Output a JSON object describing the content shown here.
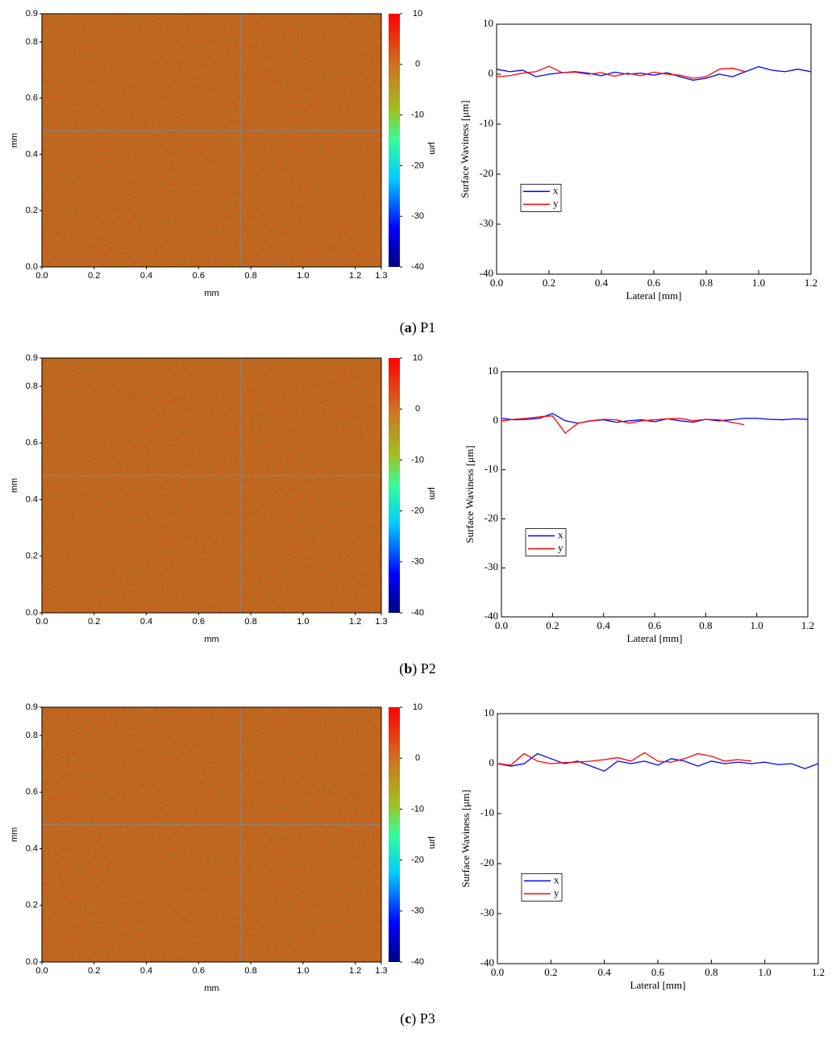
{
  "panels": [
    {
      "label": "a",
      "name": "P1"
    },
    {
      "label": "b",
      "name": "P2"
    },
    {
      "label": "c",
      "name": "P3"
    }
  ],
  "chart_data": [
    {
      "type": "heatmap",
      "xlabel": "mm",
      "ylabel": "mm",
      "xlim": [
        0,
        1.3
      ],
      "ylim": [
        0,
        0.9
      ],
      "xticks": [
        {
          "value": 0,
          "label": "0.0"
        },
        0.2,
        0.4,
        0.6,
        0.8,
        {
          "value": 1,
          "label": "1.0"
        },
        1.2,
        1.3
      ],
      "yticks": [
        {
          "value": 0,
          "label": "0.0"
        },
        0.2,
        0.4,
        0.6,
        0.8,
        0.9
      ],
      "crosshair": [
        0.76,
        0.485
      ],
      "colorbar": {
        "lim": [
          -40,
          10
        ],
        "ticks": [
          10,
          0,
          -10,
          -20,
          -30,
          -40
        ],
        "label": "μm"
      }
    },
    {
      "type": "line",
      "xlabel": "Lateral [mm]",
      "ylabel": "Surface Waviness [μm]",
      "xlim": [
        0,
        1.2
      ],
      "ylim": [
        -40,
        10
      ],
      "xticks": [
        {
          "value": 0,
          "label": "0.0"
        },
        0.2,
        0.4,
        0.6,
        0.8,
        {
          "value": 1,
          "label": "1.0"
        },
        1.2
      ],
      "yticks": [
        10,
        0,
        -10,
        -20,
        -30,
        -40
      ],
      "legend": "center left",
      "x": [
        0,
        0.05,
        0.1,
        0.15,
        0.2,
        0.25,
        0.3,
        0.35,
        0.4,
        0.45,
        0.5,
        0.55,
        0.6,
        0.65,
        0.7,
        0.75,
        0.8,
        0.85,
        0.9,
        0.95,
        1,
        1.05,
        1.1,
        1.15,
        1.2
      ],
      "series": [
        {
          "name": "x",
          "color": "#0000ff",
          "values": [
            1,
            0.5,
            0.8,
            -0.5,
            0,
            0.3,
            0.5,
            0.2,
            -0.3,
            0.4,
            0,
            0.2,
            -0.2,
            0.3,
            -0.5,
            -1.2,
            -0.8,
            0,
            -0.5,
            0.5,
            1.5,
            0.8,
            0.5,
            1,
            0.5
          ]
        },
        {
          "name": "y",
          "color": "#ff0000",
          "values": [
            -0.5,
            -0.3,
            0.2,
            0.5,
            1.6,
            0.3,
            0.4,
            0,
            0.3,
            -0.4,
            0.2,
            -0.3,
            0.4,
            0,
            -0.2,
            -0.8,
            -0.5,
            1,
            1.2,
            0.5,
            null,
            null,
            null,
            null,
            null
          ]
        }
      ]
    },
    {
      "type": "heatmap",
      "xlabel": "mm",
      "ylabel": "mm",
      "xlim": [
        0,
        1.3
      ],
      "ylim": [
        0,
        0.9
      ],
      "xticks": [
        {
          "value": 0,
          "label": "0.0"
        },
        0.2,
        0.4,
        0.6,
        0.8,
        {
          "value": 1,
          "label": "1.0"
        },
        1.2,
        1.3
      ],
      "yticks": [
        {
          "value": 0,
          "label": "0.0"
        },
        0.2,
        0.4,
        0.6,
        0.8,
        0.9
      ],
      "crosshair": [
        0.76,
        0.485
      ],
      "colorbar": {
        "lim": [
          -40,
          10
        ],
        "ticks": [
          10,
          0,
          -10,
          -20,
          -30,
          -40
        ],
        "label": "μm"
      }
    },
    {
      "type": "line",
      "xlabel": "Lateral [mm]",
      "ylabel": "Surface Waviness [μm]",
      "xlim": [
        0,
        1.2
      ],
      "ylim": [
        -40,
        10
      ],
      "xticks": [
        {
          "value": 0,
          "label": "0.0"
        },
        0.2,
        0.4,
        0.6,
        0.8,
        {
          "value": 1,
          "label": "1.0"
        },
        1.2
      ],
      "yticks": [
        10,
        0,
        -10,
        -20,
        -30,
        -40
      ],
      "legend": "center left",
      "x": [
        0,
        0.05,
        0.1,
        0.15,
        0.2,
        0.25,
        0.3,
        0.35,
        0.4,
        0.45,
        0.5,
        0.55,
        0.6,
        0.65,
        0.7,
        0.75,
        0.8,
        0.85,
        0.9,
        0.95,
        1,
        1.05,
        1.1,
        1.15,
        1.2
      ],
      "series": [
        {
          "name": "x",
          "color": "#0000ff",
          "values": [
            0.5,
            0.2,
            0.3,
            0.5,
            1.5,
            0,
            -0.5,
            0,
            0.2,
            -0.3,
            0,
            0.2,
            -0.2,
            0.4,
            0,
            -0.3,
            0.3,
            0,
            0.2,
            0.5,
            0.5,
            0.3,
            0.2,
            0.4,
            0.3
          ]
        },
        {
          "name": "y",
          "color": "#ff0000",
          "values": [
            0,
            0.3,
            0.5,
            0.8,
            1,
            -2.5,
            -0.5,
            0,
            0.3,
            0.2,
            -0.5,
            0,
            0.2,
            0.4,
            0.5,
            0,
            0.3,
            0.2,
            -0.3,
            -0.8,
            null,
            null,
            null,
            null,
            null
          ]
        }
      ]
    },
    {
      "type": "heatmap",
      "xlabel": "mm",
      "ylabel": "mm",
      "xlim": [
        0,
        1.3
      ],
      "ylim": [
        0,
        0.9
      ],
      "xticks": [
        {
          "value": 0,
          "label": "0.0"
        },
        0.2,
        0.4,
        0.6,
        0.8,
        {
          "value": 1,
          "label": "1.0"
        },
        1.2,
        1.3
      ],
      "yticks": [
        {
          "value": 0,
          "label": "0.0"
        },
        0.2,
        0.4,
        0.6,
        0.8,
        0.9
      ],
      "crosshair": [
        0.76,
        0.485
      ],
      "colorbar": {
        "lim": [
          -40,
          10
        ],
        "ticks": [
          10,
          0,
          -10,
          -20,
          -30,
          -40
        ],
        "label": "μm"
      }
    },
    {
      "type": "line",
      "xlabel": "Lateral [mm]",
      "ylabel": "Surface Waviness [μm]",
      "xlim": [
        0,
        1.2
      ],
      "ylim": [
        -40,
        10
      ],
      "xticks": [
        {
          "value": 0,
          "label": "0.0"
        },
        0.2,
        0.4,
        0.6,
        0.8,
        {
          "value": 1,
          "label": "1.0"
        },
        1.2
      ],
      "yticks": [
        10,
        0,
        -10,
        -20,
        -30,
        -40
      ],
      "legend": "center left",
      "x": [
        0,
        0.05,
        0.1,
        0.15,
        0.2,
        0.25,
        0.3,
        0.35,
        0.4,
        0.45,
        0.5,
        0.55,
        0.6,
        0.65,
        0.7,
        0.75,
        0.8,
        0.85,
        0.9,
        0.95,
        1,
        1.05,
        1.1,
        1.15,
        1.2
      ],
      "series": [
        {
          "name": "x",
          "color": "#0000ff",
          "values": [
            0,
            -0.5,
            0,
            2,
            1,
            0,
            0.5,
            -0.5,
            -1.5,
            0.5,
            0,
            0.5,
            -0.3,
            1,
            0.5,
            -0.5,
            0.5,
            0,
            0.3,
            0,
            0.3,
            -0.2,
            0,
            -1,
            0
          ]
        },
        {
          "name": "y",
          "color": "#ff0000",
          "values": [
            0,
            -0.3,
            2,
            0.5,
            0,
            0.2,
            0.3,
            0.5,
            0.8,
            1.2,
            0.5,
            2.2,
            0.5,
            0.3,
            1,
            2,
            1.5,
            0.5,
            0.8,
            0.5,
            null,
            null,
            null,
            null,
            null
          ]
        }
      ]
    }
  ]
}
